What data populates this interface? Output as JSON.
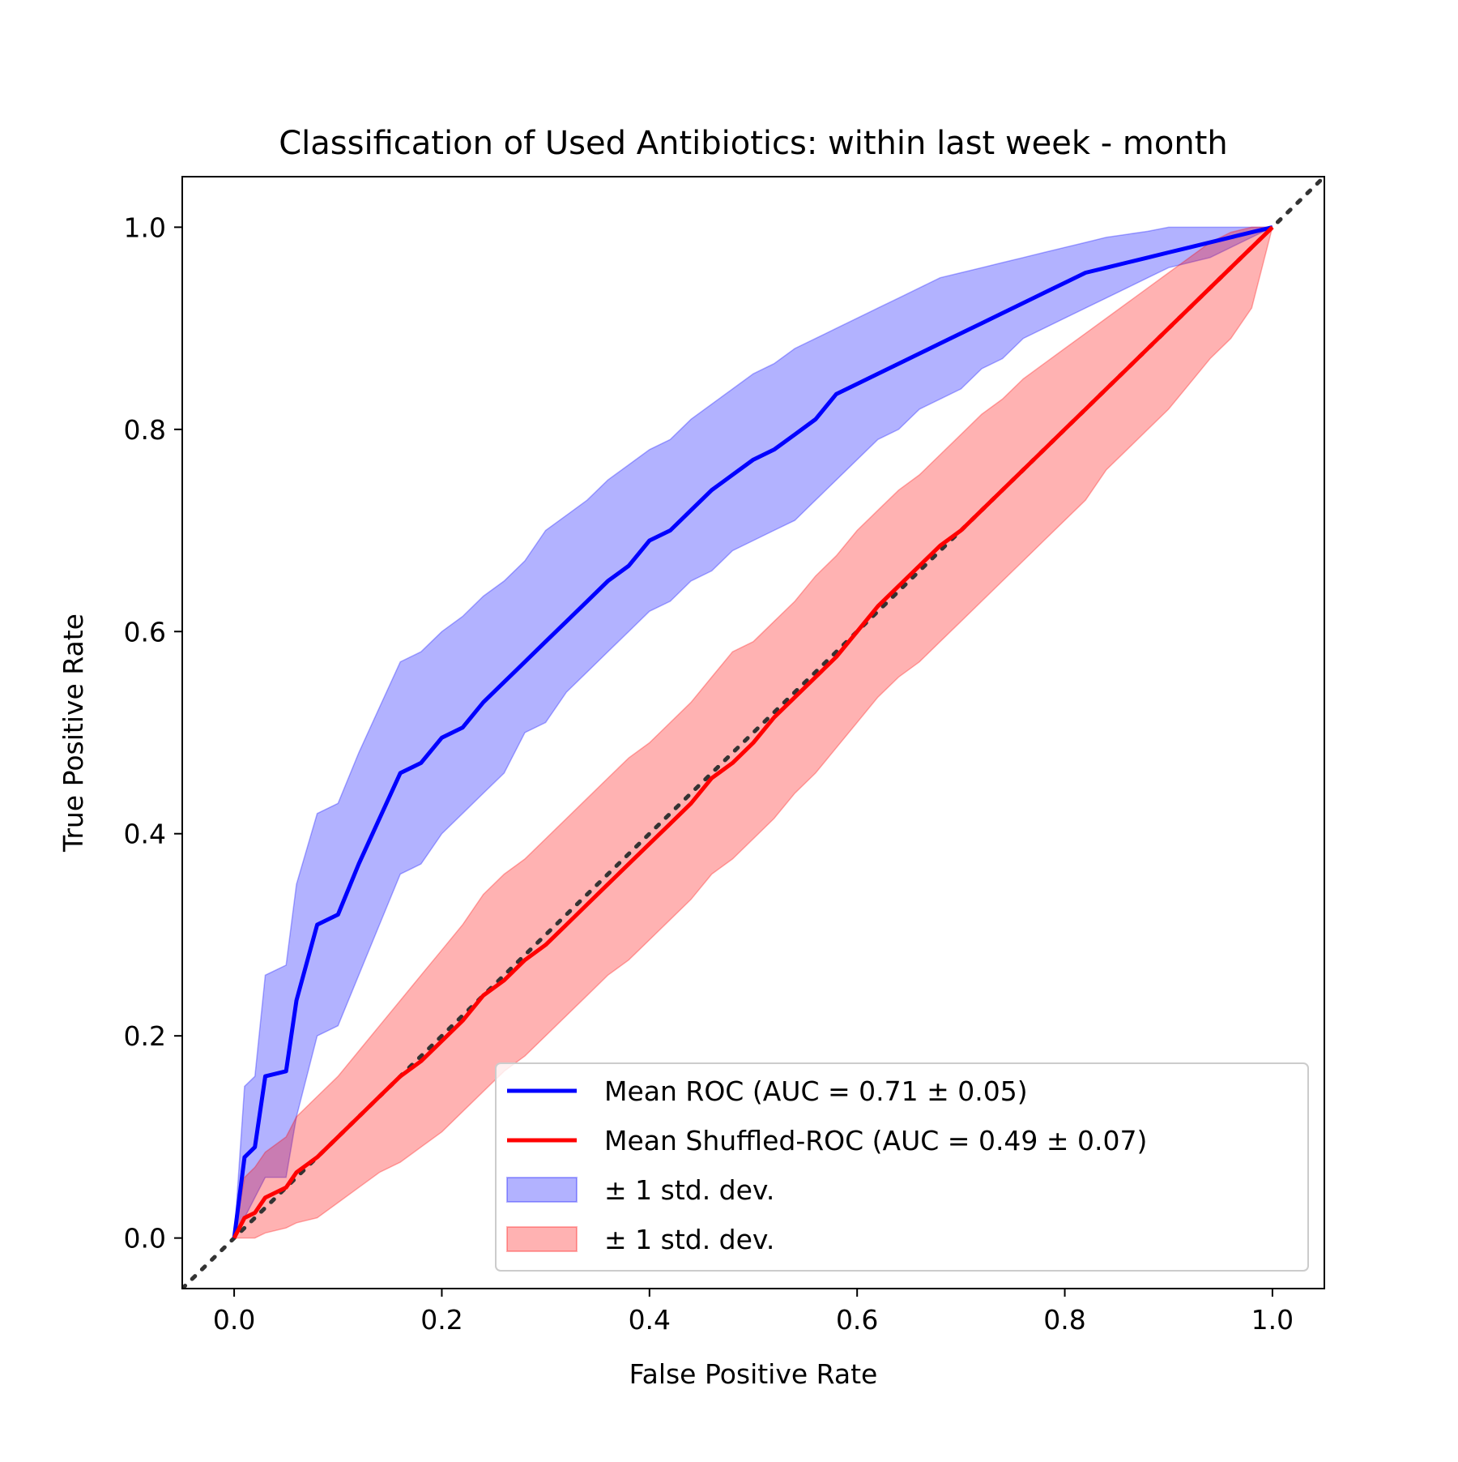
{
  "chart_data": {
    "type": "line",
    "title": "Classification of Used Antibiotics: within last week - month",
    "xlabel": "False Positive Rate",
    "ylabel": "True Positive Rate",
    "xlim": [
      -0.05,
      1.05
    ],
    "ylim": [
      -0.05,
      1.05
    ],
    "xticks": [
      0.0,
      0.2,
      0.4,
      0.6,
      0.8,
      1.0
    ],
    "yticks": [
      0.0,
      0.2,
      0.4,
      0.6,
      0.8,
      1.0
    ],
    "xtick_labels": [
      "0.0",
      "0.2",
      "0.4",
      "0.6",
      "0.8",
      "1.0"
    ],
    "ytick_labels": [
      "0.0",
      "0.2",
      "0.4",
      "0.6",
      "0.8",
      "1.0"
    ],
    "grid": false,
    "legend_position": "lower-right",
    "series": [
      {
        "name": "Mean ROC (AUC = 0.71 ± 0.05)",
        "color": "#0000ff",
        "x": [
          0.0,
          0.01,
          0.02,
          0.03,
          0.05,
          0.06,
          0.08,
          0.1,
          0.12,
          0.14,
          0.16,
          0.18,
          0.2,
          0.22,
          0.24,
          0.26,
          0.28,
          0.3,
          0.32,
          0.34,
          0.36,
          0.38,
          0.4,
          0.42,
          0.44,
          0.46,
          0.48,
          0.5,
          0.52,
          0.54,
          0.56,
          0.58,
          0.6,
          0.62,
          0.64,
          0.66,
          0.68,
          0.7,
          0.72,
          0.74,
          0.76,
          0.78,
          0.8,
          0.82,
          0.84,
          0.86,
          0.88,
          0.9,
          0.92,
          0.94,
          0.96,
          0.98,
          1.0
        ],
        "y": [
          0.0,
          0.08,
          0.09,
          0.16,
          0.165,
          0.235,
          0.31,
          0.32,
          0.37,
          0.415,
          0.46,
          0.47,
          0.495,
          0.505,
          0.53,
          0.55,
          0.57,
          0.59,
          0.61,
          0.63,
          0.65,
          0.665,
          0.69,
          0.7,
          0.72,
          0.74,
          0.755,
          0.77,
          0.78,
          0.795,
          0.81,
          0.835,
          0.845,
          0.855,
          0.865,
          0.875,
          0.885,
          0.895,
          0.905,
          0.915,
          0.925,
          0.935,
          0.945,
          0.955,
          0.96,
          0.965,
          0.97,
          0.975,
          0.98,
          0.985,
          0.99,
          0.995,
          1.0
        ]
      },
      {
        "name": "Mean Shuffled-ROC (AUC = 0.49 ± 0.07)",
        "color": "#ff0000",
        "x": [
          0.0,
          0.01,
          0.02,
          0.03,
          0.05,
          0.06,
          0.08,
          0.1,
          0.12,
          0.14,
          0.16,
          0.18,
          0.2,
          0.22,
          0.24,
          0.26,
          0.28,
          0.3,
          0.32,
          0.34,
          0.36,
          0.38,
          0.4,
          0.42,
          0.44,
          0.46,
          0.48,
          0.5,
          0.52,
          0.54,
          0.56,
          0.58,
          0.6,
          0.62,
          0.64,
          0.66,
          0.68,
          0.7,
          0.72,
          0.74,
          0.76,
          0.78,
          0.8,
          0.82,
          0.84,
          0.86,
          0.88,
          0.9,
          0.92,
          0.94,
          0.96,
          0.98,
          1.0
        ],
        "y": [
          0.0,
          0.02,
          0.025,
          0.04,
          0.05,
          0.065,
          0.08,
          0.1,
          0.12,
          0.14,
          0.16,
          0.175,
          0.195,
          0.215,
          0.24,
          0.255,
          0.275,
          0.29,
          0.31,
          0.33,
          0.35,
          0.37,
          0.39,
          0.41,
          0.43,
          0.455,
          0.47,
          0.49,
          0.515,
          0.535,
          0.555,
          0.575,
          0.6,
          0.625,
          0.645,
          0.665,
          0.685,
          0.7,
          0.72,
          0.74,
          0.76,
          0.78,
          0.8,
          0.82,
          0.84,
          0.86,
          0.88,
          0.9,
          0.92,
          0.94,
          0.96,
          0.98,
          1.0
        ]
      }
    ],
    "bands": [
      {
        "name": "± 1 std. dev.",
        "color": "#0000ff",
        "x": [
          0.0,
          0.01,
          0.02,
          0.03,
          0.05,
          0.06,
          0.08,
          0.1,
          0.12,
          0.14,
          0.16,
          0.18,
          0.2,
          0.22,
          0.24,
          0.26,
          0.28,
          0.3,
          0.32,
          0.34,
          0.36,
          0.38,
          0.4,
          0.42,
          0.44,
          0.46,
          0.48,
          0.5,
          0.52,
          0.54,
          0.56,
          0.58,
          0.6,
          0.62,
          0.64,
          0.66,
          0.68,
          0.7,
          0.72,
          0.74,
          0.76,
          0.78,
          0.8,
          0.82,
          0.84,
          0.86,
          0.88,
          0.9,
          0.92,
          0.94,
          0.96,
          0.98,
          1.0
        ],
        "lower": [
          0.0,
          0.02,
          0.04,
          0.06,
          0.06,
          0.12,
          0.2,
          0.21,
          0.26,
          0.31,
          0.36,
          0.37,
          0.4,
          0.42,
          0.44,
          0.46,
          0.5,
          0.51,
          0.54,
          0.56,
          0.58,
          0.6,
          0.62,
          0.63,
          0.65,
          0.66,
          0.68,
          0.69,
          0.7,
          0.71,
          0.73,
          0.75,
          0.77,
          0.79,
          0.8,
          0.82,
          0.83,
          0.84,
          0.86,
          0.87,
          0.89,
          0.9,
          0.91,
          0.92,
          0.93,
          0.94,
          0.95,
          0.96,
          0.965,
          0.97,
          0.98,
          0.99,
          1.0
        ],
        "upper": [
          0.0,
          0.15,
          0.16,
          0.26,
          0.27,
          0.35,
          0.42,
          0.43,
          0.48,
          0.525,
          0.57,
          0.58,
          0.6,
          0.615,
          0.635,
          0.65,
          0.67,
          0.7,
          0.715,
          0.73,
          0.75,
          0.765,
          0.78,
          0.79,
          0.81,
          0.825,
          0.84,
          0.855,
          0.865,
          0.88,
          0.89,
          0.9,
          0.91,
          0.92,
          0.93,
          0.94,
          0.95,
          0.955,
          0.96,
          0.965,
          0.97,
          0.975,
          0.98,
          0.985,
          0.99,
          0.993,
          0.996,
          1.0,
          1.0,
          1.0,
          1.0,
          1.0,
          1.0
        ]
      },
      {
        "name": "± 1 std. dev.",
        "color": "#ff0000",
        "x": [
          0.0,
          0.01,
          0.02,
          0.03,
          0.05,
          0.06,
          0.08,
          0.1,
          0.12,
          0.14,
          0.16,
          0.18,
          0.2,
          0.22,
          0.24,
          0.26,
          0.28,
          0.3,
          0.32,
          0.34,
          0.36,
          0.38,
          0.4,
          0.42,
          0.44,
          0.46,
          0.48,
          0.5,
          0.52,
          0.54,
          0.56,
          0.58,
          0.6,
          0.62,
          0.64,
          0.66,
          0.68,
          0.7,
          0.72,
          0.74,
          0.76,
          0.78,
          0.8,
          0.82,
          0.84,
          0.86,
          0.88,
          0.9,
          0.92,
          0.94,
          0.96,
          0.98,
          1.0
        ],
        "lower": [
          0.0,
          0.0,
          0.0,
          0.005,
          0.01,
          0.015,
          0.02,
          0.035,
          0.05,
          0.065,
          0.075,
          0.09,
          0.105,
          0.125,
          0.145,
          0.165,
          0.18,
          0.2,
          0.22,
          0.24,
          0.26,
          0.275,
          0.295,
          0.315,
          0.335,
          0.36,
          0.375,
          0.395,
          0.415,
          0.44,
          0.46,
          0.485,
          0.51,
          0.535,
          0.555,
          0.57,
          0.59,
          0.61,
          0.63,
          0.65,
          0.67,
          0.69,
          0.71,
          0.73,
          0.76,
          0.78,
          0.8,
          0.82,
          0.845,
          0.87,
          0.89,
          0.92,
          1.0
        ],
        "upper": [
          0.0,
          0.06,
          0.07,
          0.085,
          0.1,
          0.12,
          0.14,
          0.16,
          0.185,
          0.21,
          0.235,
          0.26,
          0.285,
          0.31,
          0.34,
          0.36,
          0.375,
          0.395,
          0.415,
          0.435,
          0.455,
          0.475,
          0.49,
          0.51,
          0.53,
          0.555,
          0.58,
          0.59,
          0.61,
          0.63,
          0.655,
          0.675,
          0.7,
          0.72,
          0.74,
          0.755,
          0.775,
          0.795,
          0.815,
          0.83,
          0.85,
          0.865,
          0.88,
          0.895,
          0.91,
          0.925,
          0.94,
          0.955,
          0.97,
          0.985,
          0.995,
          1.0,
          1.0
        ]
      }
    ],
    "reference_line": {
      "x": [
        -0.05,
        1.05
      ],
      "y": [
        -0.05,
        1.05
      ],
      "color": "#333333",
      "style": "dotted"
    },
    "legend": [
      {
        "label": "Mean ROC (AUC = 0.71 ± 0.05)",
        "kind": "line",
        "color": "#0000ff"
      },
      {
        "label": "Mean Shuffled-ROC (AUC = 0.49 ± 0.07)",
        "kind": "line",
        "color": "#ff0000"
      },
      {
        "label": "± 1 std. dev.",
        "kind": "patch",
        "color": "#0000ff"
      },
      {
        "label": "± 1 std. dev.",
        "kind": "patch",
        "color": "#ff0000"
      }
    ]
  }
}
